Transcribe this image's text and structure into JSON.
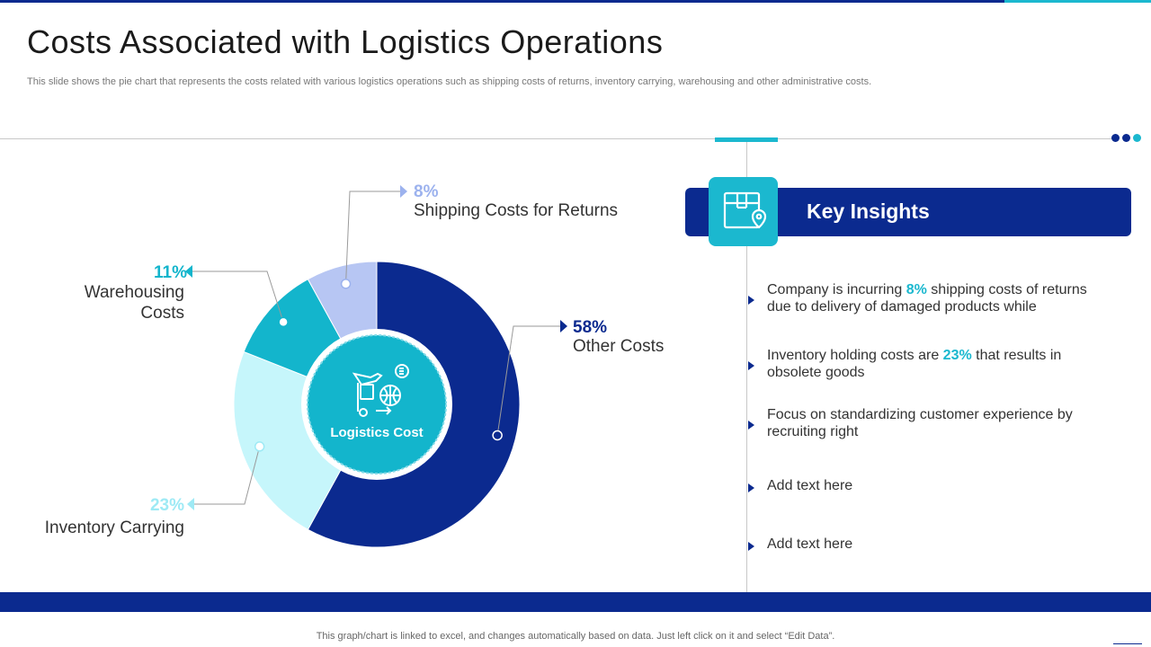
{
  "title": "Costs Associated with Logistics Operations",
  "subtitle": "This slide shows the pie chart that represents the costs related with various logistics operations such as shipping costs of returns, inventory carrying, warehousing and other administrative costs.",
  "footer": "This graph/chart is linked to excel,  and changes automatically based on data. Just left click on it and select “Edit Data”.",
  "chart_data": {
    "type": "pie",
    "center_label": "Logistics Cost",
    "categories": [
      "Other Costs",
      "Inventory Carrying",
      "Warehousing Costs",
      "Shipping Costs for Returns"
    ],
    "values": [
      58,
      23,
      11,
      8
    ],
    "labels": [
      "58%",
      "23%",
      "11%",
      "8%"
    ],
    "colors": [
      "#0b2a8f",
      "#c6f6fb",
      "#13b5cc",
      "#b7c6f3"
    ],
    "label_colors": [
      "#0b2a8f",
      "#9eeaf5",
      "#13b5cc",
      "#9cb2ee"
    ],
    "warehousing_label_lines": [
      "Warehousing",
      "Costs"
    ]
  },
  "insights": {
    "title": "Key Insights",
    "icon": "map-location-box-icon",
    "items": [
      {
        "before": "Company is incurring ",
        "highlight": "8%",
        "after": " shipping costs of returns",
        "line2": "due to delivery of damaged products while"
      },
      {
        "before": "Inventory  holding costs are ",
        "highlight": "23%",
        "after": " that results in",
        "line2": "obsolete goods"
      },
      {
        "before": "Focus on standardizing customer experience by",
        "highlight": "",
        "after": "",
        "line2": "recruiting right"
      },
      {
        "before": "Add text here",
        "highlight": "",
        "after": "",
        "line2": ""
      },
      {
        "before": "Add text here",
        "highlight": "",
        "after": "",
        "line2": ""
      }
    ]
  },
  "colors": {
    "navy": "#0b2a8f",
    "cyan": "#1bb8cf"
  }
}
